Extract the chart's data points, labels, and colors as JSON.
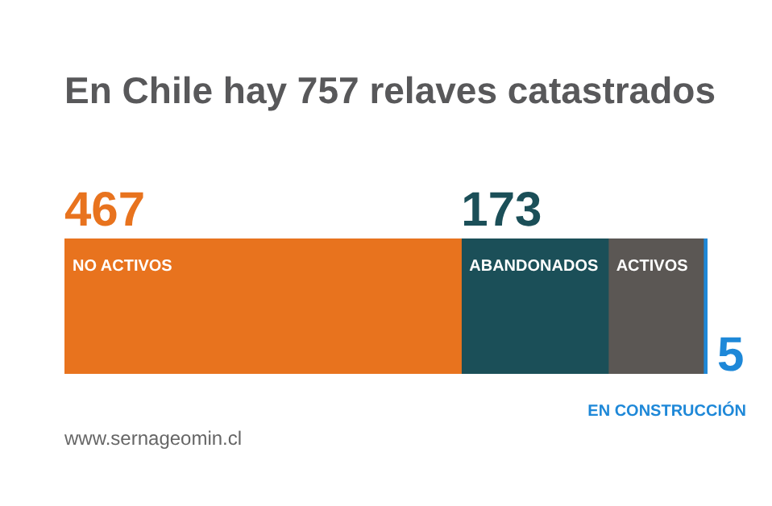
{
  "chart_data": {
    "type": "bar",
    "title": "En Chile hay 757 relaves catastrados",
    "orientation": "horizontal",
    "stacked": true,
    "categories": [
      null
    ],
    "tick_labels": false,
    "legend": false,
    "series": [
      {
        "name": "NO ACTIVOS",
        "color": "#e8731e",
        "values": [
          467
        ],
        "value_labels": [
          "467"
        ]
      },
      {
        "name": "ABANDONADOS",
        "color": "#1b4f58",
        "values": [
          173
        ],
        "value_labels": [
          "173"
        ]
      },
      {
        "name": "ACTIVOS",
        "color": "#5b5754",
        "values": [
          112
        ],
        "value_labels": [
          null
        ]
      },
      {
        "name": "EN CONSTRUCCIÓN",
        "color": "#1e88d8",
        "values": [
          5
        ],
        "value_labels": [
          "5"
        ]
      }
    ],
    "annotations": [
      "www.sernageomin.cl"
    ]
  }
}
